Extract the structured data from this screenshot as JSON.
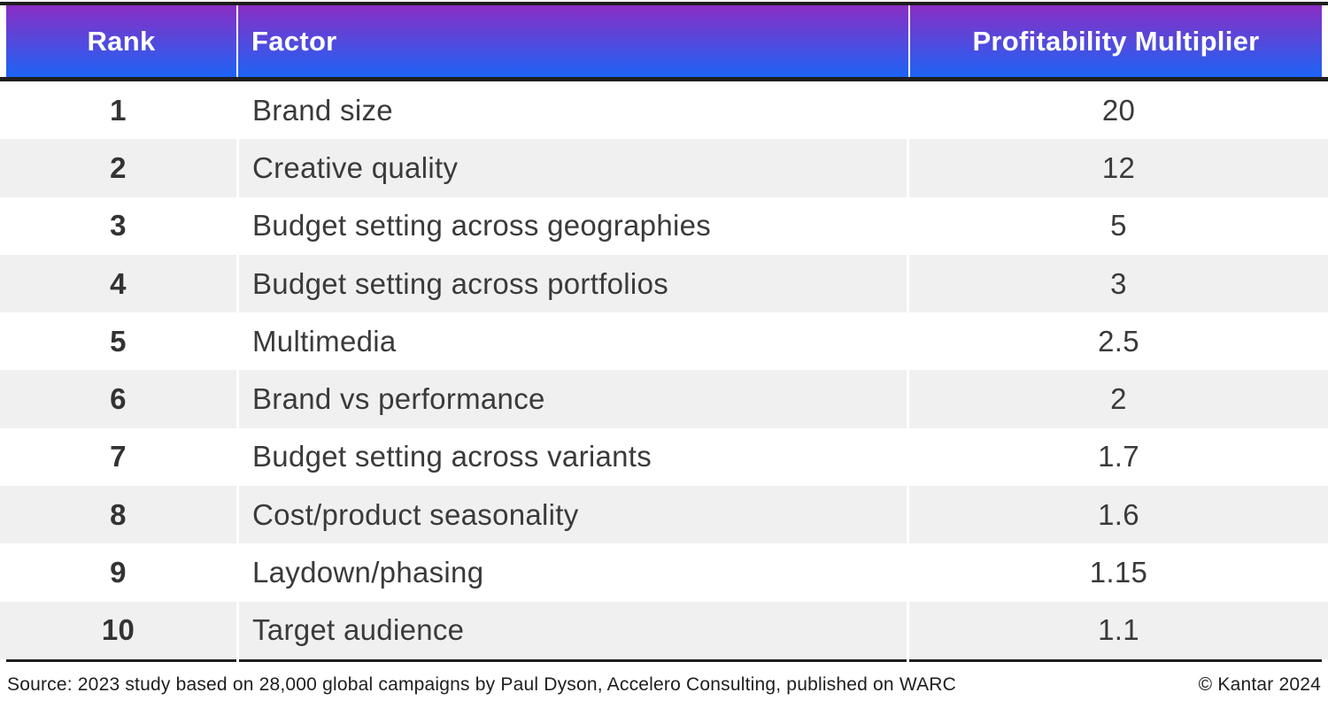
{
  "header": {
    "columns": [
      "Rank",
      "Factor",
      "Profitability Multiplier"
    ]
  },
  "rows": [
    {
      "rank": "1",
      "factor": "Brand size",
      "multiplier": "20"
    },
    {
      "rank": "2",
      "factor": "Creative quality",
      "multiplier": "12"
    },
    {
      "rank": "3",
      "factor": "Budget setting across geographies",
      "multiplier": "5"
    },
    {
      "rank": "4",
      "factor": "Budget setting across portfolios",
      "multiplier": "3"
    },
    {
      "rank": "5",
      "factor": "Multimedia",
      "multiplier": "2.5"
    },
    {
      "rank": "6",
      "factor": "Brand vs performance",
      "multiplier": "2"
    },
    {
      "rank": "7",
      "factor": "Budget setting across variants",
      "multiplier": "1.7"
    },
    {
      "rank": "8",
      "factor": "Cost/product seasonality",
      "multiplier": "1.6"
    },
    {
      "rank": "9",
      "factor": "Laydown/phasing",
      "multiplier": "1.15"
    },
    {
      "rank": "10",
      "factor": "Target audience",
      "multiplier": "1.1"
    }
  ],
  "footer": {
    "source": "Source: 2023 study based on 28,000 global campaigns by Paul Dyson, Accelero Consulting, published on WARC",
    "copyright": "© Kantar 2024"
  },
  "colors": {
    "header_gradient_top": "#8b2ec4",
    "header_gradient_bottom": "#1c64f5",
    "header_text": "#ffffff",
    "row_alt_bg": "#f0f0f0",
    "body_text": "#3a3a3a",
    "border_dark": "#1e1e1e"
  },
  "chart_data": {
    "type": "table",
    "title": "",
    "columns": [
      "Rank",
      "Factor",
      "Profitability Multiplier"
    ],
    "rows": [
      [
        1,
        "Brand size",
        20
      ],
      [
        2,
        "Creative quality",
        12
      ],
      [
        3,
        "Budget setting across geographies",
        5
      ],
      [
        4,
        "Budget setting across portfolios",
        3
      ],
      [
        5,
        "Multimedia",
        2.5
      ],
      [
        6,
        "Brand vs performance",
        2
      ],
      [
        7,
        "Budget setting across variants",
        1.7
      ],
      [
        8,
        "Cost/product seasonality",
        1.6
      ],
      [
        9,
        "Laydown/phasing",
        1.15
      ],
      [
        10,
        "Target audience",
        1.1
      ]
    ],
    "source": "Source: 2023 study based on 28,000 global campaigns by Paul Dyson, Accelero Consulting, published on WARC",
    "copyright": "© Kantar 2024"
  }
}
